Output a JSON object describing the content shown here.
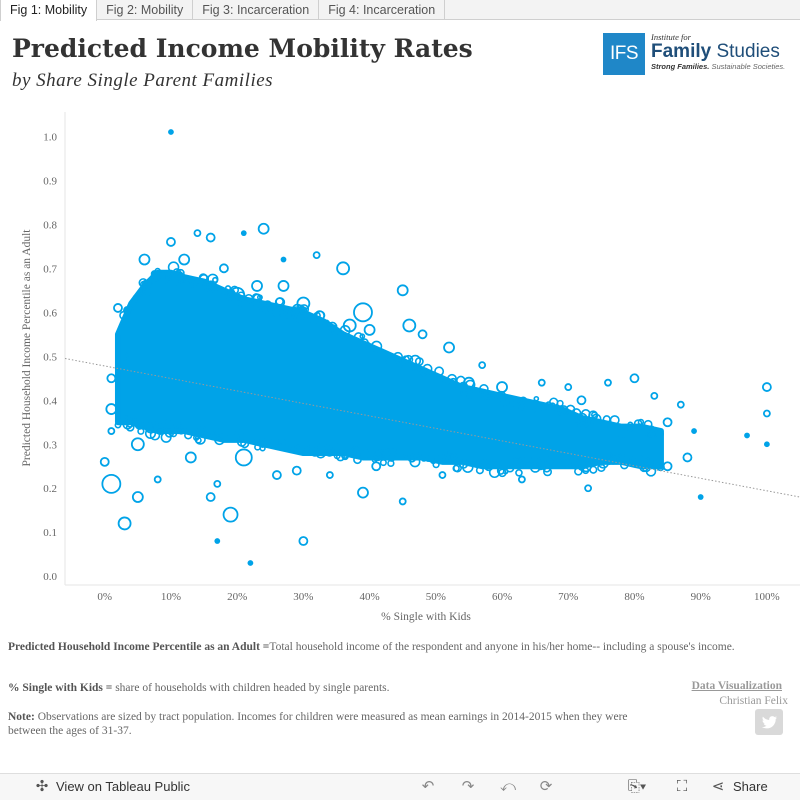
{
  "tabs": [
    {
      "label": "Fig 1: Mobility",
      "active": true
    },
    {
      "label": "Fig 2: Mobility",
      "active": false
    },
    {
      "label": "Fig 3: Incarceration",
      "active": false
    },
    {
      "label": "Fig 4: Incarceration",
      "active": false
    }
  ],
  "header": {
    "title": "Predicted  Income  Mobility  Rates",
    "subtitle": "by  Share  Single  Parent  Families"
  },
  "logo": {
    "mark": "IFS",
    "institute": "Institute for",
    "name_bold": "Family",
    "name_rest": "Studies",
    "tag_bold": "Strong Families.",
    "tag_rest": "Sustainable Societies."
  },
  "colors": {
    "marker": "#00a3e8",
    "trend": "#999999",
    "accent": "#1f87c8"
  },
  "chart_data": {
    "type": "scatter",
    "xlabel": "% Single with Kids",
    "ylabel": "Predicted Household Income Percentile as an Adult",
    "xlim": [
      -0.06,
      1.05
    ],
    "ylim": [
      -0.02,
      1.06
    ],
    "x_ticks": [
      "0%",
      "10%",
      "20%",
      "30%",
      "40%",
      "50%",
      "60%",
      "70%",
      "80%",
      "90%",
      "100%"
    ],
    "y_ticks": [
      "0.0",
      "0.1",
      "0.2",
      "0.3",
      "0.4",
      "0.5",
      "0.6",
      "0.7",
      "0.8",
      "0.9",
      "1.0"
    ],
    "trend_line": {
      "x": [
        -0.06,
        1.05
      ],
      "y": [
        0.495,
        0.18
      ]
    },
    "marker_style": "hollow circles sized by tract population",
    "dense_band": [
      [
        0.02,
        0.35,
        0.55
      ],
      [
        0.04,
        0.35,
        0.62
      ],
      [
        0.06,
        0.34,
        0.66
      ],
      [
        0.08,
        0.33,
        0.69
      ],
      [
        0.1,
        0.33,
        0.69
      ],
      [
        0.12,
        0.33,
        0.68
      ],
      [
        0.15,
        0.32,
        0.67
      ],
      [
        0.18,
        0.31,
        0.65
      ],
      [
        0.21,
        0.31,
        0.63
      ],
      [
        0.24,
        0.3,
        0.62
      ],
      [
        0.27,
        0.29,
        0.61
      ],
      [
        0.3,
        0.28,
        0.6
      ],
      [
        0.33,
        0.28,
        0.58
      ],
      [
        0.36,
        0.28,
        0.55
      ],
      [
        0.39,
        0.27,
        0.53
      ],
      [
        0.42,
        0.27,
        0.51
      ],
      [
        0.45,
        0.27,
        0.49
      ],
      [
        0.48,
        0.27,
        0.47
      ],
      [
        0.51,
        0.26,
        0.45
      ],
      [
        0.54,
        0.26,
        0.43
      ],
      [
        0.57,
        0.25,
        0.42
      ],
      [
        0.6,
        0.25,
        0.41
      ],
      [
        0.63,
        0.25,
        0.4
      ],
      [
        0.66,
        0.25,
        0.39
      ],
      [
        0.69,
        0.25,
        0.38
      ],
      [
        0.72,
        0.25,
        0.36
      ],
      [
        0.75,
        0.26,
        0.35
      ],
      [
        0.78,
        0.26,
        0.34
      ],
      [
        0.81,
        0.25,
        0.34
      ],
      [
        0.84,
        0.25,
        0.33
      ]
    ],
    "points": [
      [
        0.1,
        1.01,
        2
      ],
      [
        0.01,
        0.21,
        9
      ],
      [
        0.03,
        0.12,
        6
      ],
      [
        0.19,
        0.14,
        7
      ],
      [
        0.3,
        0.08,
        4
      ],
      [
        0.22,
        0.03,
        2
      ],
      [
        0.17,
        0.08,
        2
      ],
      [
        0.05,
        0.18,
        5
      ],
      [
        0.16,
        0.18,
        4
      ],
      [
        0.26,
        0.23,
        4
      ],
      [
        0.39,
        0.19,
        5
      ],
      [
        0.45,
        0.17,
        3
      ],
      [
        0.58,
        0.25,
        4
      ],
      [
        0.63,
        0.22,
        3
      ],
      [
        0.73,
        0.2,
        3
      ],
      [
        0.85,
        0.25,
        4
      ],
      [
        0.9,
        0.18,
        2
      ],
      [
        0.88,
        0.27,
        4
      ],
      [
        0.89,
        0.33,
        2
      ],
      [
        1.0,
        0.43,
        4
      ],
      [
        1.0,
        0.37,
        3
      ],
      [
        1.0,
        0.3,
        2
      ],
      [
        0.97,
        0.32,
        2
      ],
      [
        0.36,
        0.7,
        6
      ],
      [
        0.32,
        0.73,
        3
      ],
      [
        0.27,
        0.66,
        5
      ],
      [
        0.3,
        0.62,
        6
      ],
      [
        0.37,
        0.57,
        6
      ],
      [
        0.39,
        0.6,
        9
      ],
      [
        0.45,
        0.65,
        5
      ],
      [
        0.46,
        0.57,
        6
      ],
      [
        0.52,
        0.52,
        5
      ],
      [
        0.57,
        0.48,
        3
      ],
      [
        0.66,
        0.44,
        3
      ],
      [
        0.7,
        0.43,
        3
      ],
      [
        0.76,
        0.44,
        3
      ],
      [
        0.8,
        0.45,
        4
      ],
      [
        0.83,
        0.41,
        3
      ],
      [
        0.87,
        0.39,
        3
      ],
      [
        0.85,
        0.35,
        4
      ],
      [
        0.24,
        0.79,
        5
      ],
      [
        0.16,
        0.77,
        4
      ],
      [
        0.1,
        0.76,
        4
      ],
      [
        0.14,
        0.78,
        3
      ],
      [
        0.21,
        0.78,
        2
      ],
      [
        0.01,
        0.38,
        5
      ],
      [
        0.01,
        0.45,
        4
      ],
      [
        0.01,
        0.33,
        3
      ],
      [
        0.0,
        0.26,
        4
      ],
      [
        0.02,
        0.61,
        4
      ],
      [
        0.06,
        0.72,
        5
      ],
      [
        0.2,
        0.64,
        7
      ],
      [
        0.23,
        0.66,
        5
      ],
      [
        0.05,
        0.3,
        6
      ],
      [
        0.13,
        0.27,
        5
      ],
      [
        0.21,
        0.27,
        8
      ],
      [
        0.29,
        0.24,
        4
      ],
      [
        0.34,
        0.23,
        3
      ],
      [
        0.41,
        0.25,
        4
      ],
      [
        0.51,
        0.23,
        3
      ],
      [
        0.67,
        0.26,
        3
      ],
      [
        0.75,
        0.26,
        3
      ],
      [
        0.82,
        0.26,
        5
      ],
      [
        0.03,
        0.5,
        3
      ],
      [
        0.07,
        0.34,
        6
      ],
      [
        0.12,
        0.72,
        5
      ],
      [
        0.18,
        0.7,
        4
      ],
      [
        0.27,
        0.72,
        2
      ],
      [
        0.4,
        0.56,
        5
      ],
      [
        0.48,
        0.55,
        4
      ],
      [
        0.55,
        0.44,
        5
      ],
      [
        0.6,
        0.43,
        5
      ],
      [
        0.72,
        0.4,
        4
      ],
      [
        0.08,
        0.22,
        3
      ],
      [
        0.17,
        0.21,
        3
      ]
    ]
  },
  "notes": {
    "n1_label": "Predicted Household Income Percentile as an Adult =",
    "n1_text": "Total household income of the respondent and anyone in his/her home-- including a spouse's income.",
    "n2_label": "% Single with Kids =",
    "n2_text": " share of households with children headed by single parents.",
    "n3_label": "Note:",
    "n3_text": " Observations are sized by tract population. Incomes for children were measured as mean earnings in 2014-2015 when they were between the ages of 31-37."
  },
  "credit": {
    "line1": "Data Visualization",
    "line2": "Christian Felix"
  },
  "toolbar": {
    "view_label": "View on Tableau Public",
    "share_label": "Share"
  }
}
